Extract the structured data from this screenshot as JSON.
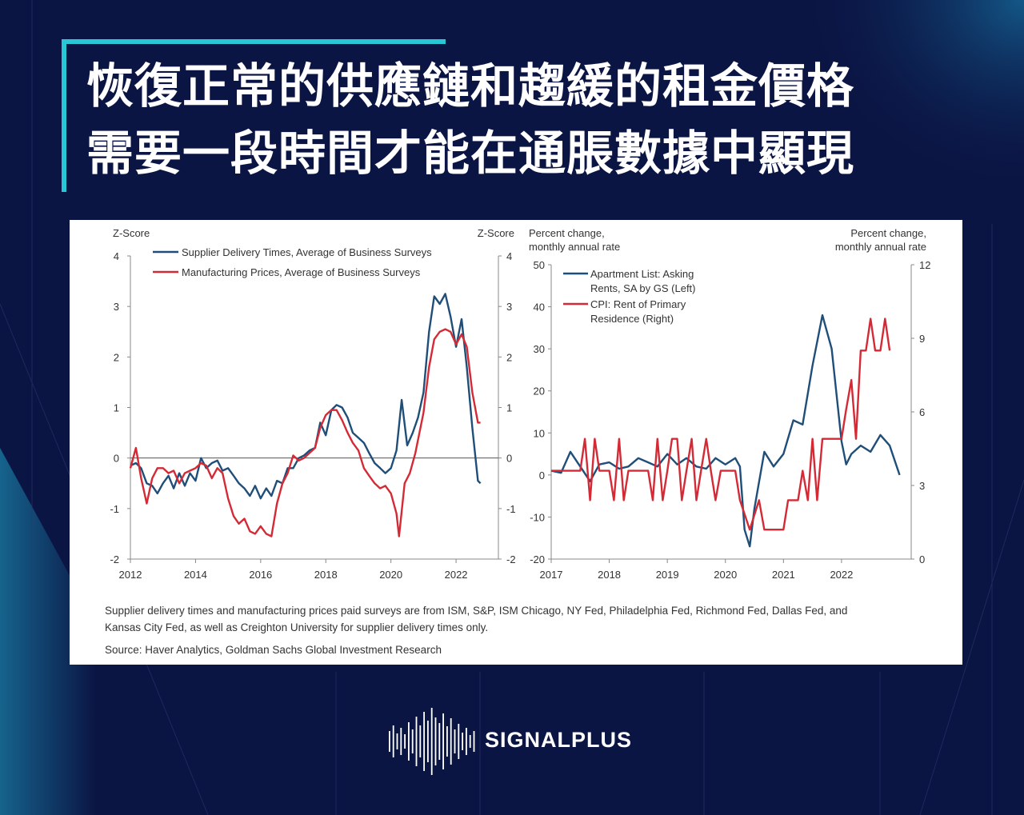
{
  "header": {
    "title_line1": "恢復正常的供應鏈和趨緩的租金價格",
    "title_line2": "需要一段時間才能在通脹數據中顯現"
  },
  "colors": {
    "background": "#0b1544",
    "accent": "#29c7d6",
    "series_blue": "#1f4e79",
    "series_red": "#d42a35"
  },
  "chart_data": [
    {
      "type": "line",
      "y_label_left": "Z-Score",
      "y_label_right": "Z-Score",
      "ylim": [
        -2,
        4
      ],
      "y_ticks": [
        -2,
        -1,
        0,
        1,
        2,
        3,
        4
      ],
      "xlim": [
        2012,
        2023.3
      ],
      "x_ticks": [
        "2012",
        "2014",
        "2016",
        "2018",
        "2020",
        "2022"
      ],
      "legend": "top-left",
      "zero_line": true,
      "series": [
        {
          "name": "Supplier Delivery Times, Average of Business Surveys",
          "color": "#1f4e79",
          "points": [
            [
              2012.0,
              -0.15
            ],
            [
              2012.17,
              -0.1
            ],
            [
              2012.33,
              -0.2
            ],
            [
              2012.5,
              -0.5
            ],
            [
              2012.67,
              -0.55
            ],
            [
              2012.83,
              -0.7
            ],
            [
              2013.0,
              -0.5
            ],
            [
              2013.17,
              -0.35
            ],
            [
              2013.33,
              -0.6
            ],
            [
              2013.5,
              -0.3
            ],
            [
              2013.67,
              -0.55
            ],
            [
              2013.83,
              -0.3
            ],
            [
              2014.0,
              -0.45
            ],
            [
              2014.17,
              0.0
            ],
            [
              2014.33,
              -0.2
            ],
            [
              2014.5,
              -0.1
            ],
            [
              2014.67,
              -0.05
            ],
            [
              2014.83,
              -0.25
            ],
            [
              2015.0,
              -0.2
            ],
            [
              2015.17,
              -0.35
            ],
            [
              2015.33,
              -0.5
            ],
            [
              2015.5,
              -0.6
            ],
            [
              2015.67,
              -0.75
            ],
            [
              2015.83,
              -0.55
            ],
            [
              2016.0,
              -0.8
            ],
            [
              2016.17,
              -0.6
            ],
            [
              2016.33,
              -0.75
            ],
            [
              2016.5,
              -0.45
            ],
            [
              2016.67,
              -0.5
            ],
            [
              2016.83,
              -0.2
            ],
            [
              2017.0,
              -0.2
            ],
            [
              2017.17,
              0.0
            ],
            [
              2017.33,
              0.05
            ],
            [
              2017.5,
              0.15
            ],
            [
              2017.67,
              0.2
            ],
            [
              2017.83,
              0.7
            ],
            [
              2018.0,
              0.45
            ],
            [
              2018.17,
              0.95
            ],
            [
              2018.33,
              1.05
            ],
            [
              2018.5,
              1.0
            ],
            [
              2018.67,
              0.8
            ],
            [
              2018.83,
              0.5
            ],
            [
              2019.0,
              0.4
            ],
            [
              2019.17,
              0.3
            ],
            [
              2019.33,
              0.1
            ],
            [
              2019.5,
              -0.1
            ],
            [
              2019.67,
              -0.2
            ],
            [
              2019.83,
              -0.3
            ],
            [
              2020.0,
              -0.2
            ],
            [
              2020.17,
              0.15
            ],
            [
              2020.33,
              1.15
            ],
            [
              2020.5,
              0.25
            ],
            [
              2020.67,
              0.5
            ],
            [
              2020.83,
              0.8
            ],
            [
              2021.0,
              1.3
            ],
            [
              2021.17,
              2.5
            ],
            [
              2021.33,
              3.2
            ],
            [
              2021.5,
              3.05
            ],
            [
              2021.67,
              3.25
            ],
            [
              2021.83,
              2.8
            ],
            [
              2022.0,
              2.2
            ],
            [
              2022.17,
              2.75
            ],
            [
              2022.33,
              1.8
            ],
            [
              2022.5,
              0.6
            ],
            [
              2022.67,
              -0.45
            ],
            [
              2022.75,
              -0.5
            ]
          ]
        },
        {
          "name": "Manufacturing Prices, Average of Business Surveys",
          "color": "#d42a35",
          "points": [
            [
              2012.0,
              -0.2
            ],
            [
              2012.17,
              0.2
            ],
            [
              2012.33,
              -0.4
            ],
            [
              2012.5,
              -0.9
            ],
            [
              2012.67,
              -0.4
            ],
            [
              2012.83,
              -0.2
            ],
            [
              2013.0,
              -0.2
            ],
            [
              2013.17,
              -0.3
            ],
            [
              2013.33,
              -0.25
            ],
            [
              2013.5,
              -0.5
            ],
            [
              2013.67,
              -0.3
            ],
            [
              2013.83,
              -0.25
            ],
            [
              2014.0,
              -0.2
            ],
            [
              2014.17,
              -0.1
            ],
            [
              2014.33,
              -0.15
            ],
            [
              2014.5,
              -0.4
            ],
            [
              2014.67,
              -0.2
            ],
            [
              2014.83,
              -0.3
            ],
            [
              2015.0,
              -0.8
            ],
            [
              2015.17,
              -1.15
            ],
            [
              2015.33,
              -1.3
            ],
            [
              2015.5,
              -1.2
            ],
            [
              2015.67,
              -1.45
            ],
            [
              2015.83,
              -1.5
            ],
            [
              2016.0,
              -1.35
            ],
            [
              2016.17,
              -1.5
            ],
            [
              2016.33,
              -1.55
            ],
            [
              2016.5,
              -0.9
            ],
            [
              2016.67,
              -0.5
            ],
            [
              2016.83,
              -0.3
            ],
            [
              2017.0,
              0.05
            ],
            [
              2017.17,
              -0.05
            ],
            [
              2017.33,
              0.0
            ],
            [
              2017.5,
              0.1
            ],
            [
              2017.67,
              0.2
            ],
            [
              2017.83,
              0.6
            ],
            [
              2018.0,
              0.85
            ],
            [
              2018.17,
              0.95
            ],
            [
              2018.33,
              0.95
            ],
            [
              2018.5,
              0.75
            ],
            [
              2018.67,
              0.5
            ],
            [
              2018.83,
              0.3
            ],
            [
              2019.0,
              0.15
            ],
            [
              2019.17,
              -0.2
            ],
            [
              2019.33,
              -0.35
            ],
            [
              2019.5,
              -0.5
            ],
            [
              2019.67,
              -0.6
            ],
            [
              2019.83,
              -0.55
            ],
            [
              2020.0,
              -0.7
            ],
            [
              2020.17,
              -1.1
            ],
            [
              2020.25,
              -1.55
            ],
            [
              2020.42,
              -0.5
            ],
            [
              2020.58,
              -0.3
            ],
            [
              2020.75,
              0.1
            ],
            [
              2021.0,
              0.9
            ],
            [
              2021.17,
              1.8
            ],
            [
              2021.33,
              2.35
            ],
            [
              2021.5,
              2.5
            ],
            [
              2021.67,
              2.55
            ],
            [
              2021.83,
              2.5
            ],
            [
              2022.0,
              2.25
            ],
            [
              2022.17,
              2.45
            ],
            [
              2022.33,
              2.2
            ],
            [
              2022.5,
              1.3
            ],
            [
              2022.67,
              0.7
            ],
            [
              2022.75,
              0.7
            ]
          ]
        }
      ]
    },
    {
      "type": "line",
      "y_label_left": "Percent change,\nmonthly annual rate",
      "y_label_right": "Percent change,\nmonthly annual rate",
      "ylim_left": [
        -20,
        50
      ],
      "ylim_right": [
        0,
        12
      ],
      "y_ticks_left": [
        -20,
        -10,
        0,
        10,
        20,
        30,
        40,
        50
      ],
      "y_ticks_right": [
        0,
        3,
        6,
        9,
        12
      ],
      "xlim": [
        2017,
        2023.2
      ],
      "x_ticks": [
        "2017",
        "2018",
        "2019",
        "2020",
        "2021",
        "2022"
      ],
      "legend": "top-left",
      "series": [
        {
          "name": "Apartment List: Asking Rents, SA by GS (Left)",
          "axis": "left",
          "color": "#1f4e79",
          "points": [
            [
              2017.0,
              1
            ],
            [
              2017.17,
              0.5
            ],
            [
              2017.33,
              5.5
            ],
            [
              2017.5,
              2
            ],
            [
              2017.67,
              -1.5
            ],
            [
              2017.83,
              2.5
            ],
            [
              2018.0,
              3
            ],
            [
              2018.17,
              1.5
            ],
            [
              2018.33,
              2
            ],
            [
              2018.5,
              4
            ],
            [
              2018.67,
              3
            ],
            [
              2018.83,
              2
            ],
            [
              2019.0,
              5
            ],
            [
              2019.17,
              2.5
            ],
            [
              2019.33,
              4
            ],
            [
              2019.5,
              2
            ],
            [
              2019.67,
              1.5
            ],
            [
              2019.83,
              4
            ],
            [
              2020.0,
              2.5
            ],
            [
              2020.17,
              4
            ],
            [
              2020.25,
              2
            ],
            [
              2020.33,
              -13
            ],
            [
              2020.42,
              -17
            ],
            [
              2020.5,
              -8
            ],
            [
              2020.67,
              5.5
            ],
            [
              2020.83,
              2
            ],
            [
              2021.0,
              5
            ],
            [
              2021.17,
              13
            ],
            [
              2021.33,
              12
            ],
            [
              2021.5,
              26
            ],
            [
              2021.67,
              38
            ],
            [
              2021.83,
              30
            ],
            [
              2022.0,
              8
            ],
            [
              2022.08,
              2.5
            ],
            [
              2022.17,
              5
            ],
            [
              2022.33,
              7
            ],
            [
              2022.5,
              5.5
            ],
            [
              2022.67,
              9.5
            ],
            [
              2022.83,
              7
            ],
            [
              2023.0,
              0
            ]
          ]
        },
        {
          "name": "CPI: Rent of Primary Residence (Right)",
          "axis": "right",
          "color": "#d42a35",
          "points": [
            [
              2017.0,
              3.6
            ],
            [
              2017.17,
              3.6
            ],
            [
              2017.33,
              3.6
            ],
            [
              2017.5,
              3.6
            ],
            [
              2017.58,
              4.9
            ],
            [
              2017.67,
              2.4
            ],
            [
              2017.75,
              4.9
            ],
            [
              2017.83,
              3.6
            ],
            [
              2017.92,
              3.6
            ],
            [
              2018.0,
              3.6
            ],
            [
              2018.08,
              2.4
            ],
            [
              2018.17,
              4.9
            ],
            [
              2018.25,
              2.4
            ],
            [
              2018.33,
              3.6
            ],
            [
              2018.5,
              3.6
            ],
            [
              2018.67,
              3.6
            ],
            [
              2018.75,
              2.4
            ],
            [
              2018.83,
              4.9
            ],
            [
              2018.92,
              2.4
            ],
            [
              2019.0,
              3.6
            ],
            [
              2019.08,
              4.9
            ],
            [
              2019.17,
              4.9
            ],
            [
              2019.25,
              2.4
            ],
            [
              2019.33,
              3.6
            ],
            [
              2019.42,
              4.9
            ],
            [
              2019.5,
              2.4
            ],
            [
              2019.58,
              3.6
            ],
            [
              2019.67,
              4.9
            ],
            [
              2019.75,
              3.6
            ],
            [
              2019.83,
              2.4
            ],
            [
              2019.92,
              3.6
            ],
            [
              2020.0,
              3.6
            ],
            [
              2020.17,
              3.6
            ],
            [
              2020.25,
              2.4
            ],
            [
              2020.42,
              1.2
            ],
            [
              2020.58,
              2.4
            ],
            [
              2020.67,
              1.2
            ],
            [
              2020.83,
              1.2
            ],
            [
              2021.0,
              1.2
            ],
            [
              2021.08,
              2.4
            ],
            [
              2021.25,
              2.4
            ],
            [
              2021.33,
              3.6
            ],
            [
              2021.42,
              2.4
            ],
            [
              2021.5,
              4.9
            ],
            [
              2021.58,
              2.4
            ],
            [
              2021.67,
              4.9
            ],
            [
              2021.83,
              4.9
            ],
            [
              2022.0,
              4.9
            ],
            [
              2022.08,
              6.1
            ],
            [
              2022.17,
              7.3
            ],
            [
              2022.25,
              4.9
            ],
            [
              2022.33,
              8.5
            ],
            [
              2022.42,
              8.5
            ],
            [
              2022.5,
              9.8
            ],
            [
              2022.58,
              8.5
            ],
            [
              2022.67,
              8.5
            ],
            [
              2022.75,
              9.8
            ],
            [
              2022.83,
              8.5
            ]
          ]
        }
      ]
    }
  ],
  "notes": {
    "line1": "Supplier delivery times and manufacturing prices paid surveys are from ISM, S&P, ISM Chicago, NY Fed, Philadelphia Fed, Richmond Fed, Dallas Fed, and",
    "line2": "Kansas City Fed, as well as Creighton University for supplier delivery times only.",
    "source": "Source: Haver Analytics, Goldman Sachs Global Investment Research"
  },
  "brand": {
    "name": "SIGNALPLUS",
    "logo_icon": "sound-wave-icon"
  }
}
